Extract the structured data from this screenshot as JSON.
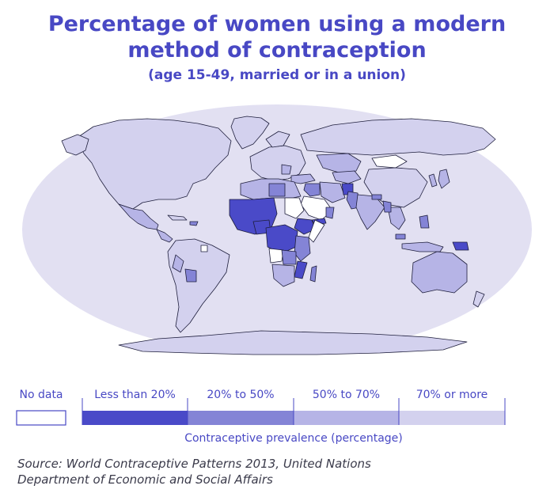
{
  "title_line1": "Percentage of women using a modern",
  "title_line2": "method of contraception",
  "subtitle": "(age 15-49, married or in a union)",
  "colors": {
    "ocean": "#e2e0f2",
    "no_data": "#ffffff",
    "lt20": "#4a4ac8",
    "r20_50": "#8484d6",
    "r50_70": "#b6b4e6",
    "ge70": "#d3d1ee",
    "border": "#1e1e3c"
  },
  "legend": {
    "no_data": "No data",
    "items": [
      "Less than 20%",
      "20% to 50%",
      "50% to 70%",
      "70% or more"
    ],
    "axis_label": "Contraceptive prevalence (percentage)"
  },
  "source_line1": "Source: World Contraceptive Patterns 2013, United Nations",
  "source_line2": "Department of Economic and Social Affairs"
}
